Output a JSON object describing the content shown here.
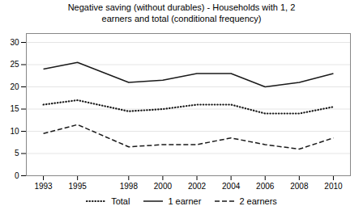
{
  "chart_data": {
    "type": "line",
    "title": "Negative saving (without durables) - Households with 1, 2\nearners and total (conditional frequency)",
    "x": [
      1993,
      1995,
      1998,
      2000,
      2002,
      2004,
      2006,
      2008,
      2010
    ],
    "series": [
      {
        "name": "Total",
        "color": "#1a1a1a",
        "line_style": "dotted",
        "values": [
          16.0,
          17.0,
          14.5,
          15.0,
          16.0,
          16.0,
          14.0,
          14.0,
          15.5
        ]
      },
      {
        "name": "1 earner",
        "color": "#1a1a1a",
        "line_style": "solid",
        "values": [
          24.0,
          25.5,
          21.0,
          21.5,
          23.0,
          23.0,
          20.0,
          21.0,
          23.0
        ]
      },
      {
        "name": "2 earners",
        "color": "#1a1a1a",
        "line_style": "dashed",
        "values": [
          9.5,
          11.5,
          6.5,
          7.0,
          7.0,
          8.5,
          7.0,
          6.0,
          8.5
        ]
      }
    ],
    "xlim": [
      1992,
      2011
    ],
    "xticks": [
      1993,
      1995,
      1998,
      2000,
      2002,
      2004,
      2006,
      2008,
      2010
    ],
    "ylim": [
      0,
      32
    ],
    "yticks": [
      0,
      5,
      10,
      15,
      20,
      25,
      30
    ],
    "grid": true,
    "legend": "bottom"
  }
}
